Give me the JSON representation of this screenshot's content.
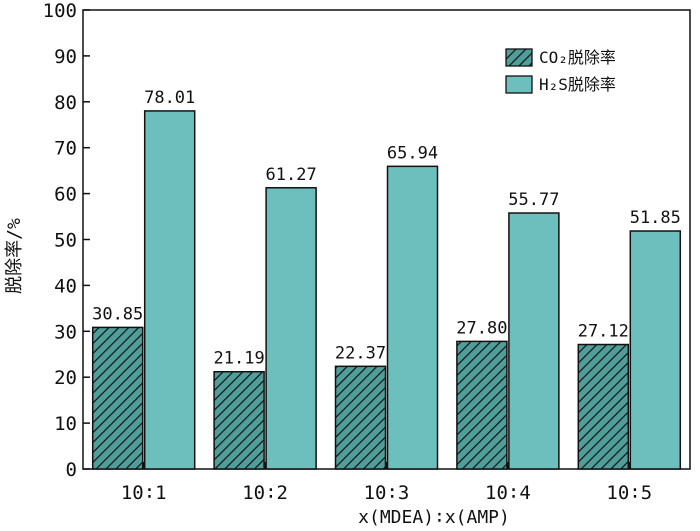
{
  "chart_data": {
    "type": "bar",
    "categories": [
      "10∶1",
      "10∶2",
      "10∶3",
      "10∶4",
      "10∶5"
    ],
    "series": [
      {
        "name": "CO₂脱除率",
        "values": [
          30.85,
          21.19,
          22.37,
          27.8,
          27.12
        ],
        "labels": [
          "30.85",
          "21.19",
          "22.37",
          "27.80",
          "27.12"
        ],
        "fill": "hatch",
        "color": "#4f9e9a"
      },
      {
        "name": "H₂S脱除率",
        "values": [
          78.01,
          61.27,
          65.94,
          55.77,
          51.85
        ],
        "labels": [
          "78.01",
          "61.27",
          "65.94",
          "55.77",
          "51.85"
        ],
        "fill": "solid",
        "color": "#6dbfbd"
      }
    ],
    "ylim": [
      0,
      100
    ],
    "yticks": [
      0,
      10,
      20,
      30,
      40,
      50,
      60,
      70,
      80,
      90,
      100
    ],
    "ytick_labels": [
      "0",
      "10",
      "20",
      "30",
      "40",
      "50",
      "60",
      "70",
      "80",
      "90",
      "100"
    ],
    "ylabel": "脱除率/%",
    "xlabel": "x(MDEA)∶x(AMP)",
    "legend_position": "top-right",
    "grid": false
  }
}
